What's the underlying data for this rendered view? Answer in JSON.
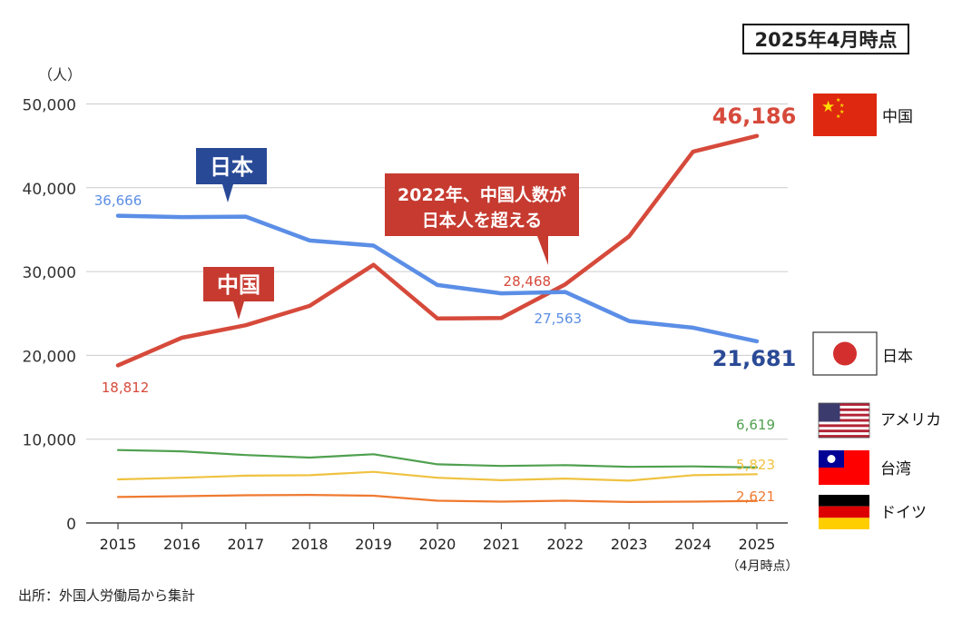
{
  "badge": "2025年4月時点",
  "source": "出所：外国人労働局から集計",
  "y_unit": "（人）",
  "x_note": "（4月時点）",
  "annotation": {
    "line1": "2022年、中国人数が",
    "line2": "日本人を超える"
  },
  "callouts": {
    "japan": "日本",
    "china": "中国"
  },
  "colors": {
    "china": "#d64a3b",
    "japan": "#5b8ee6",
    "japan_dark": "#2a4a96",
    "usa": "#4fa04f",
    "taiwan": "#efc240",
    "germany": "#ef7a30",
    "grid": "#cccccc",
    "callout_blue": "#284996",
    "callout_red": "#c63a30"
  },
  "legend": [
    {
      "key": "china",
      "label": "中国",
      "flag": "china-flag"
    },
    {
      "key": "japan",
      "label": "日本",
      "flag": "japan-flag"
    },
    {
      "key": "usa",
      "label": "アメリカ",
      "flag": "usa-flag"
    },
    {
      "key": "taiwan",
      "label": "台湾",
      "flag": "taiwan-flag"
    },
    {
      "key": "germany",
      "label": "ドイツ",
      "flag": "germany-flag"
    }
  ],
  "chart_data": {
    "type": "line",
    "x": [
      "2015",
      "2016",
      "2017",
      "2018",
      "2019",
      "2020",
      "2021",
      "2022",
      "2023",
      "2024",
      "2025"
    ],
    "ylim": [
      0,
      50000
    ],
    "yticks": [
      "0",
      "10,000",
      "20,000",
      "30,000",
      "40,000",
      "50,000"
    ],
    "ytick_values": [
      0,
      10000,
      20000,
      30000,
      40000,
      50000
    ],
    "ylabel": "（人）",
    "grid": true,
    "legend_position": "right",
    "series": [
      {
        "name": "中国",
        "key": "china",
        "values": [
          18812,
          22100,
          23600,
          25900,
          30800,
          24400,
          24450,
          28468,
          34200,
          44300,
          46186
        ]
      },
      {
        "name": "日本",
        "key": "japan",
        "values": [
          36666,
          36500,
          36550,
          33700,
          33100,
          28400,
          27400,
          27563,
          24100,
          23300,
          21681
        ]
      },
      {
        "name": "アメリカ",
        "key": "usa",
        "values": [
          8700,
          8550,
          8100,
          7800,
          8200,
          7000,
          6800,
          6900,
          6700,
          6750,
          6619
        ]
      },
      {
        "name": "台湾",
        "key": "taiwan",
        "values": [
          5200,
          5400,
          5650,
          5700,
          6100,
          5400,
          5100,
          5300,
          5050,
          5700,
          5823
        ]
      },
      {
        "name": "ドイツ",
        "key": "germany",
        "values": [
          3100,
          3200,
          3300,
          3350,
          3250,
          2650,
          2550,
          2650,
          2500,
          2550,
          2621
        ]
      }
    ],
    "data_labels": [
      {
        "series": "japan",
        "index": 0,
        "text": "36,666"
      },
      {
        "series": "china",
        "index": 0,
        "text": "18,812"
      },
      {
        "series": "china",
        "index": 7,
        "text": "28,468"
      },
      {
        "series": "japan",
        "index": 7,
        "text": "27,563"
      },
      {
        "series": "china",
        "index": 10,
        "text": "46,186"
      },
      {
        "series": "japan",
        "index": 10,
        "text": "21,681"
      },
      {
        "series": "usa",
        "index": 10,
        "text": "6,619"
      },
      {
        "series": "taiwan",
        "index": 10,
        "text": "5,823"
      },
      {
        "series": "germany",
        "index": 10,
        "text": "2,621"
      }
    ]
  }
}
